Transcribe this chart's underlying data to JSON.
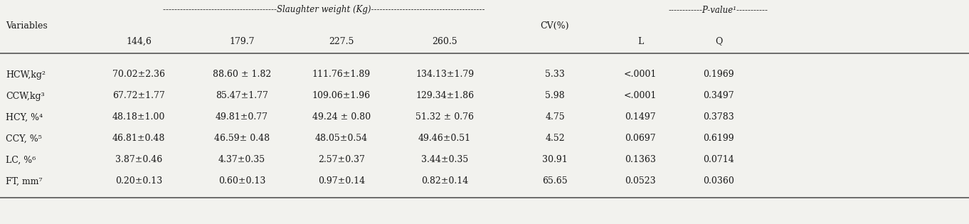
{
  "title_slaughter": "----------------------------------------Slaughter weight (Kg)----------------------------------------",
  "title_pvalue": "------------P-value¹-----------",
  "col_variables": "Variables",
  "col_cv": "CV(%)",
  "col_L": "L",
  "col_Q": "Q",
  "slaughter_weights": [
    "144,6",
    "179.7",
    "227.5",
    "260.5"
  ],
  "rows": [
    {
      "var": "HCW,kg²",
      "vals": [
        "70.02±2.36",
        "88.60 ± 1.82",
        "111.76±1.89",
        "134.13±1.79"
      ],
      "cv": "5.33",
      "L": "<.0001",
      "Q": "0.1969"
    },
    {
      "var": "CCW,kg³",
      "vals": [
        "67.72±1.77",
        "85.47±1.77",
        "109.06±1.96",
        "129.34±1.86"
      ],
      "cv": "5.98",
      "L": "<.0001",
      "Q": "0.3497"
    },
    {
      "var": "HCY, %⁴",
      "vals": [
        "48.18±1.00",
        "49.81±0.77",
        "49.24 ± 0.80",
        "51.32 ± 0.76"
      ],
      "cv": "4.75",
      "L": "0.1497",
      "Q": "0.3783"
    },
    {
      "var": "CCY, %⁵",
      "vals": [
        "46.81±0.48",
        "46.59± 0.48",
        "48.05±0.54",
        "49.46±0.51"
      ],
      "cv": "4.52",
      "L": "0.0697",
      "Q": "0.6199"
    },
    {
      "var": "LC, %⁶",
      "vals": [
        "3.87±0.46",
        "4.37±0.35",
        "2.57±0.37",
        "3.44±0.35"
      ],
      "cv": "30.91",
      "L": "0.1363",
      "Q": "0.0714"
    },
    {
      "var": "FT, mm⁷",
      "vals": [
        "0.20±0.13",
        "0.60±0.13",
        "0.97±0.14",
        "0.82±0.14"
      ],
      "cv": "65.65",
      "L": "0.0523",
      "Q": "0.0360"
    }
  ],
  "bg_color": "#f2f2ee",
  "text_color": "#1a1a1a",
  "font_size": 9.0,
  "line_color": "#555555"
}
